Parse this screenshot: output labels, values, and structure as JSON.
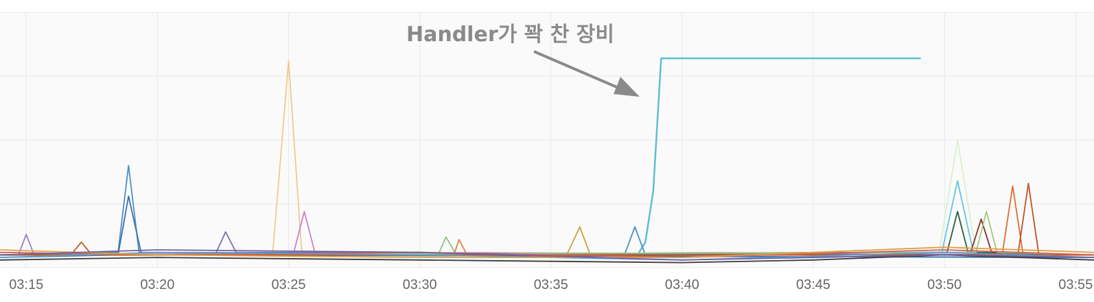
{
  "chart_data": {
    "type": "line",
    "title": "",
    "xlabel": "",
    "ylabel": "",
    "x_ticks": [
      "03:15",
      "03:20",
      "03:25",
      "03:30",
      "03:35",
      "03:40",
      "03:45",
      "03:50",
      "03:55"
    ],
    "x_range_minutes": [
      14.0,
      55.7
    ],
    "y_range": [
      0,
      100
    ],
    "grid": true,
    "legend": "none",
    "annotation": {
      "text": "Handler가 꽉 찬 장비",
      "target_series": "full-handler-device"
    },
    "series": [
      {
        "color": "#5bbfd0",
        "x": [
          14,
          38.3,
          38.6,
          38.9,
          39.2,
          49.1
        ],
        "y": [
          5,
          5,
          10,
          30,
          82,
          82
        ]
      },
      {
        "color": "#f0c890",
        "x": [
          14,
          24.4,
          25,
          25.5,
          26,
          55.7
        ],
        "y": [
          5,
          6,
          81,
          6,
          5,
          5
        ]
      },
      {
        "color": "#4a8fc8",
        "x": [
          14,
          18.5,
          18.9,
          19.3,
          55.7
        ],
        "y": [
          5,
          6,
          40,
          6,
          5
        ]
      },
      {
        "color": "#3a6faa",
        "x": [
          14,
          18.5,
          18.9,
          19.4,
          55.7
        ],
        "y": [
          4,
          5,
          28,
          5,
          4
        ]
      },
      {
        "color": "#c87fd0",
        "x": [
          14,
          25.2,
          25.6,
          26,
          55.7
        ],
        "y": [
          5,
          6,
          22,
          6,
          5
        ]
      },
      {
        "color": "#9a7fc8",
        "x": [
          14,
          14.7,
          15,
          15.3,
          55.7
        ],
        "y": [
          5,
          5,
          13,
          5,
          5
        ]
      },
      {
        "color": "#7a6fb0",
        "x": [
          14,
          22.2,
          22.6,
          23,
          55.7
        ],
        "y": [
          5,
          5,
          14,
          6,
          5
        ]
      },
      {
        "color": "#c8a040",
        "x": [
          14,
          35.6,
          36.1,
          36.5,
          55.7
        ],
        "y": [
          5,
          5,
          16,
          5,
          5
        ]
      },
      {
        "color": "#4a8fc8",
        "x": [
          14,
          37.8,
          38.2,
          38.6,
          55.7
        ],
        "y": [
          5,
          5,
          16,
          5,
          5
        ]
      },
      {
        "color": "#90c080",
        "x": [
          14,
          30.7,
          31,
          31.4,
          55.7
        ],
        "y": [
          5,
          5,
          12,
          5,
          5
        ]
      },
      {
        "color": "#e08040",
        "x": [
          14,
          31.3,
          31.5,
          31.8,
          55.7
        ],
        "y": [
          5,
          5,
          11,
          5,
          5
        ]
      },
      {
        "color": "#d8f0d0",
        "x": [
          14,
          49.8,
          50.5,
          51.2,
          55.7
        ],
        "y": [
          5,
          6,
          50,
          6,
          5
        ]
      },
      {
        "color": "#5cc8e0",
        "x": [
          14,
          49.9,
          50.5,
          51.1,
          55.7
        ],
        "y": [
          5,
          6,
          34,
          6,
          5
        ]
      },
      {
        "color": "#e06a30",
        "x": [
          14,
          52.2,
          52.6,
          53,
          55.7
        ],
        "y": [
          5,
          5,
          32,
          5,
          5
        ]
      },
      {
        "color": "#c05020",
        "x": [
          14,
          52.8,
          53.2,
          53.6,
          55.7
        ],
        "y": [
          5,
          5,
          33,
          5,
          5
        ]
      },
      {
        "color": "#2a5a3a",
        "x": [
          14,
          50.1,
          50.5,
          50.9,
          55.7
        ],
        "y": [
          5,
          6,
          22,
          6,
          5
        ]
      },
      {
        "color": "#8a3020",
        "x": [
          14,
          51,
          51.4,
          51.8,
          55.7
        ],
        "y": [
          5,
          6,
          19,
          6,
          5
        ]
      },
      {
        "color": "#a0c880",
        "x": [
          14,
          51.2,
          51.6,
          52,
          55.7
        ],
        "y": [
          5,
          6,
          22,
          6,
          5
        ]
      },
      {
        "color": "#c05a20",
        "x": [
          14,
          16.7,
          17.1,
          17.5,
          55.7
        ],
        "y": [
          5,
          5,
          10,
          5,
          5
        ]
      },
      {
        "color": "#3a3a3a",
        "x": [
          14,
          20,
          30,
          40,
          45,
          50,
          55.7
        ],
        "y": [
          3,
          4,
          3,
          2,
          3,
          5,
          3
        ]
      },
      {
        "color": "#d06060",
        "x": [
          14,
          20,
          30,
          40,
          50,
          55.7
        ],
        "y": [
          6,
          5,
          6,
          4,
          7,
          5
        ]
      },
      {
        "color": "#60a0d0",
        "x": [
          14,
          20,
          30,
          40,
          50,
          55.7
        ],
        "y": [
          4,
          6,
          5,
          3,
          6,
          4
        ]
      },
      {
        "color": "#e0a040",
        "x": [
          14,
          20,
          30,
          40,
          50,
          55.7
        ],
        "y": [
          7,
          5,
          4,
          4,
          8,
          6
        ]
      },
      {
        "color": "#7060a0",
        "x": [
          14,
          20,
          30,
          40,
          50,
          55.7
        ],
        "y": [
          5,
          7,
          6,
          3,
          5,
          4
        ]
      }
    ]
  }
}
